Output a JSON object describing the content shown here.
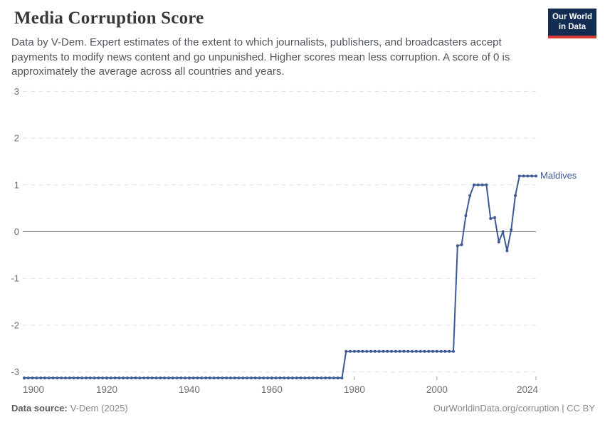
{
  "header": {
    "title": "Media Corruption Score",
    "subtitle": "Data by V-Dem. Expert estimates of the extent to which journalists, publishers, and broadcasters accept payments to modify news content and go unpunished. Higher scores mean less corruption. A score of 0 is approximately the average across all countries and years.",
    "logo": {
      "line1": "Our World",
      "line2": "in Data"
    }
  },
  "chart_data": {
    "type": "line",
    "title": "Media Corruption Score",
    "xlabel": "",
    "ylabel": "",
    "xlim": [
      1900,
      2024
    ],
    "ylim": [
      -3.35,
      3
    ],
    "grid": "horizontal-dashed",
    "legend_position": "entity label right of line end",
    "x_ticks": [
      1900,
      1920,
      1940,
      1960,
      1980,
      2000,
      2024
    ],
    "y_ticks": [
      3,
      2,
      1,
      0,
      -1,
      -2,
      -3
    ],
    "series": [
      {
        "name": "Maldives",
        "color": "#3d5a96",
        "start_year": 1900,
        "values": [
          -3.13,
          -3.13,
          -3.13,
          -3.13,
          -3.13,
          -3.13,
          -3.13,
          -3.13,
          -3.13,
          -3.13,
          -3.13,
          -3.13,
          -3.13,
          -3.13,
          -3.13,
          -3.13,
          -3.13,
          -3.13,
          -3.13,
          -3.13,
          -3.13,
          -3.13,
          -3.13,
          -3.13,
          -3.13,
          -3.13,
          -3.13,
          -3.13,
          -3.13,
          -3.13,
          -3.13,
          -3.13,
          -3.13,
          -3.13,
          -3.13,
          -3.13,
          -3.13,
          -3.13,
          -3.13,
          -3.13,
          -3.13,
          -3.13,
          -3.13,
          -3.13,
          -3.13,
          -3.13,
          -3.13,
          -3.13,
          -3.13,
          -3.13,
          -3.13,
          -3.13,
          -3.13,
          -3.13,
          -3.13,
          -3.13,
          -3.13,
          -3.13,
          -3.13,
          -3.13,
          -3.13,
          -3.13,
          -3.13,
          -3.13,
          -3.13,
          -3.13,
          -3.13,
          -3.13,
          -3.13,
          -3.13,
          -3.13,
          -3.13,
          -3.13,
          -3.13,
          -3.13,
          -3.13,
          -3.13,
          -3.13,
          -2.56,
          -2.56,
          -2.56,
          -2.56,
          -2.56,
          -2.56,
          -2.56,
          -2.56,
          -2.56,
          -2.56,
          -2.56,
          -2.56,
          -2.56,
          -2.56,
          -2.56,
          -2.56,
          -2.56,
          -2.56,
          -2.56,
          -2.56,
          -2.56,
          -2.56,
          -2.56,
          -2.56,
          -2.56,
          -2.56,
          -2.56,
          -0.3,
          -0.28,
          0.34,
          0.77,
          1.0,
          1.0,
          1.0,
          1.0,
          0.28,
          0.3,
          -0.22,
          0.0,
          -0.41,
          0.04,
          0.77,
          1.19,
          1.19,
          1.19,
          1.19,
          1.19
        ]
      }
    ]
  },
  "footer": {
    "data_source_label": "Data source:",
    "data_source_value": "V-Dem (2025)",
    "credit": "OurWorldinData.org/corruption | CC BY"
  },
  "colors": {
    "line": "#3d5a96",
    "grid": "#e1e1e1",
    "zero_line": "#8b8b8b",
    "tick_text": "#6f6f6f",
    "logo_bg": "#132c52",
    "logo_stripe": "#d73a34"
  }
}
